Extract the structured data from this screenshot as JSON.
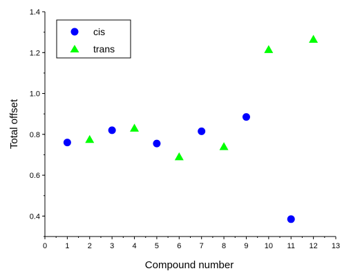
{
  "chart_data": {
    "type": "scatter",
    "xlabel": "Compound number",
    "ylabel": "Total offset",
    "xlim": [
      0,
      13
    ],
    "ylim": [
      0.3,
      1.4
    ],
    "x_ticks": [
      "0",
      "1",
      "2",
      "3",
      "4",
      "5",
      "6",
      "7",
      "8",
      "9",
      "10",
      "11",
      "12",
      "13"
    ],
    "y_ticks": [
      "0.4",
      "0.6",
      "0.8",
      "1.0",
      "1.2",
      "1.4"
    ],
    "legend_position": "top-left",
    "grid": false,
    "series": [
      {
        "name": "cis",
        "marker": "circle",
        "color": "#0000ff",
        "points": [
          {
            "x": 1,
            "y": 0.76
          },
          {
            "x": 3,
            "y": 0.82
          },
          {
            "x": 5,
            "y": 0.755
          },
          {
            "x": 7,
            "y": 0.815
          },
          {
            "x": 9,
            "y": 0.885
          },
          {
            "x": 11,
            "y": 0.385
          }
        ]
      },
      {
        "name": "trans",
        "marker": "triangle",
        "color": "#00ff00",
        "points": [
          {
            "x": 2,
            "y": 0.775
          },
          {
            "x": 4,
            "y": 0.83
          },
          {
            "x": 6,
            "y": 0.69
          },
          {
            "x": 8,
            "y": 0.74
          },
          {
            "x": 10,
            "y": 1.215
          },
          {
            "x": 12,
            "y": 1.265
          }
        ]
      }
    ]
  }
}
